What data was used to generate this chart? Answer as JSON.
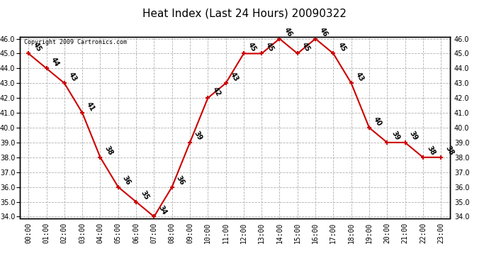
{
  "title": "Heat Index (Last 24 Hours) 20090322",
  "copyright": "Copyright 2009 Cartronics.com",
  "hours": [
    "00:00",
    "01:00",
    "02:00",
    "03:00",
    "04:00",
    "05:00",
    "06:00",
    "07:00",
    "08:00",
    "09:00",
    "10:00",
    "11:00",
    "12:00",
    "13:00",
    "14:00",
    "15:00",
    "16:00",
    "17:00",
    "18:00",
    "19:00",
    "20:00",
    "21:00",
    "22:00",
    "23:00"
  ],
  "values": [
    45,
    44,
    43,
    41,
    38,
    36,
    35,
    34,
    36,
    39,
    42,
    43,
    45,
    45,
    46,
    45,
    46,
    45,
    43,
    40,
    39,
    39,
    38,
    38
  ],
  "line_color": "#cc0000",
  "marker_color": "#cc0000",
  "bg_color": "#ffffff",
  "grid_color": "#b0b0b0",
  "ylim_min": 34.0,
  "ylim_max": 46.0,
  "title_fontsize": 11,
  "tick_fontsize": 7,
  "annot_fontsize": 7,
  "copyright_fontsize": 6
}
